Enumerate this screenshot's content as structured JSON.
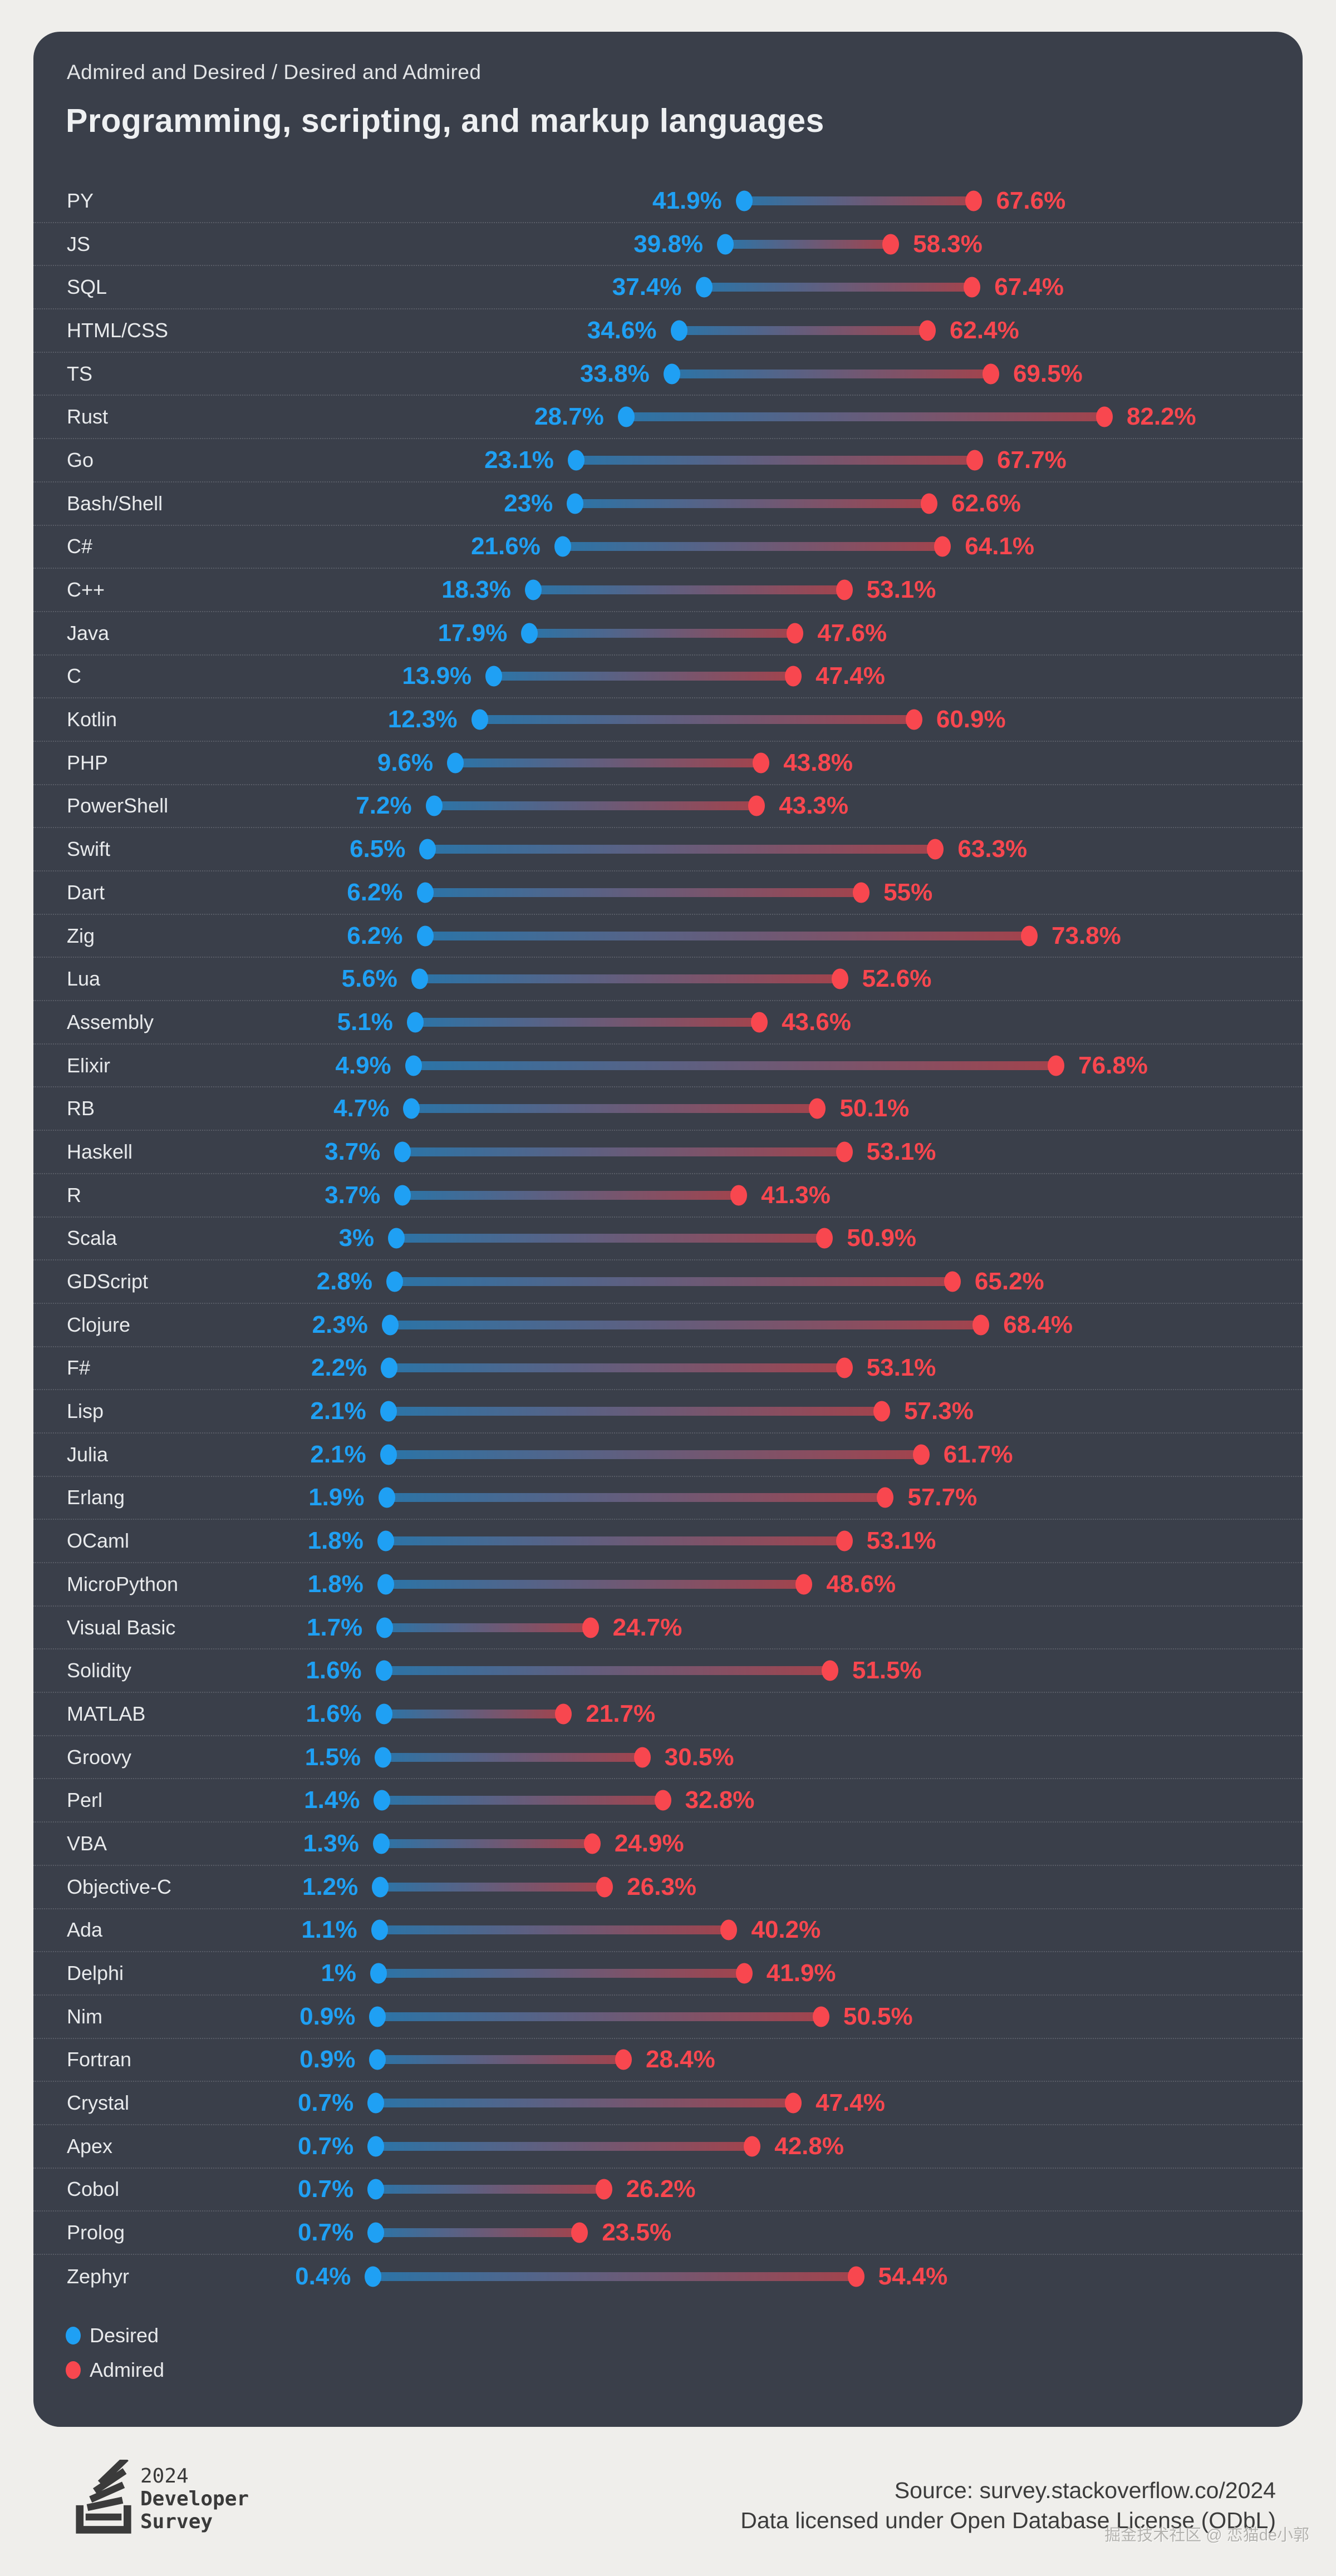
{
  "header": {
    "subtitle": "Admired and Desired / Desired and Admired",
    "title": "Programming, scripting, and markup languages"
  },
  "legend": {
    "items": [
      {
        "label": "Desired",
        "color": "#1fa0f4"
      },
      {
        "label": "Admired",
        "color": "#f8474f"
      }
    ]
  },
  "footer": {
    "logo_year": "2024",
    "logo_line1": "Developer",
    "logo_line2": "Survey",
    "source": "Source: survey.stackoverflow.co/2024",
    "license": "Data licensed under Open Database License (ODbL)",
    "watermark": "掘金技术社区 @ 恋猫de小郭"
  },
  "chart_data": {
    "type": "scatter",
    "variant": "dumbbell",
    "title": "Programming, scripting, and markup languages",
    "subtitle": "Admired and Desired / Desired and Admired",
    "unit": "%",
    "xlim": [
      0,
      100
    ],
    "grid": false,
    "legend_position": "bottom-left",
    "background": "#3a3f4a",
    "categories": [
      "PY",
      "JS",
      "SQL",
      "HTML/CSS",
      "TS",
      "Rust",
      "Go",
      "Bash/Shell",
      "C#",
      "C++",
      "Java",
      "C",
      "Kotlin",
      "PHP",
      "PowerShell",
      "Swift",
      "Dart",
      "Zig",
      "Lua",
      "Assembly",
      "Elixir",
      "RB",
      "Haskell",
      "R",
      "Scala",
      "GDScript",
      "Clojure",
      "F#",
      "Lisp",
      "Julia",
      "Erlang",
      "OCaml",
      "MicroPython",
      "Visual Basic",
      "Solidity",
      "MATLAB",
      "Groovy",
      "Perl",
      "VBA",
      "Objective-C",
      "Ada",
      "Delphi",
      "Nim",
      "Fortran",
      "Crystal",
      "Apex",
      "Cobol",
      "Prolog",
      "Zephyr"
    ],
    "series": [
      {
        "name": "Desired",
        "color": "#1fa0f4",
        "values": [
          41.9,
          39.8,
          37.4,
          34.6,
          33.8,
          28.7,
          23.1,
          23,
          21.6,
          18.3,
          17.9,
          13.9,
          12.3,
          9.6,
          7.2,
          6.5,
          6.2,
          6.2,
          5.6,
          5.1,
          4.9,
          4.7,
          3.7,
          3.7,
          3,
          2.8,
          2.3,
          2.2,
          2.1,
          2.1,
          1.9,
          1.8,
          1.8,
          1.7,
          1.6,
          1.6,
          1.5,
          1.4,
          1.3,
          1.2,
          1.1,
          1,
          0.9,
          0.9,
          0.7,
          0.7,
          0.7,
          0.7,
          0.4
        ]
      },
      {
        "name": "Admired",
        "color": "#f8474f",
        "values": [
          67.6,
          58.3,
          67.4,
          62.4,
          69.5,
          82.2,
          67.7,
          62.6,
          64.1,
          53.1,
          47.6,
          47.4,
          60.9,
          43.8,
          43.3,
          63.3,
          55,
          73.8,
          52.6,
          43.6,
          76.8,
          50.1,
          53.1,
          41.3,
          50.9,
          65.2,
          68.4,
          53.1,
          57.3,
          61.7,
          57.7,
          53.1,
          48.6,
          24.7,
          51.5,
          21.7,
          30.5,
          32.8,
          24.9,
          26.3,
          40.2,
          41.9,
          50.5,
          28.4,
          47.4,
          42.8,
          26.2,
          23.5,
          54.4
        ]
      }
    ]
  }
}
